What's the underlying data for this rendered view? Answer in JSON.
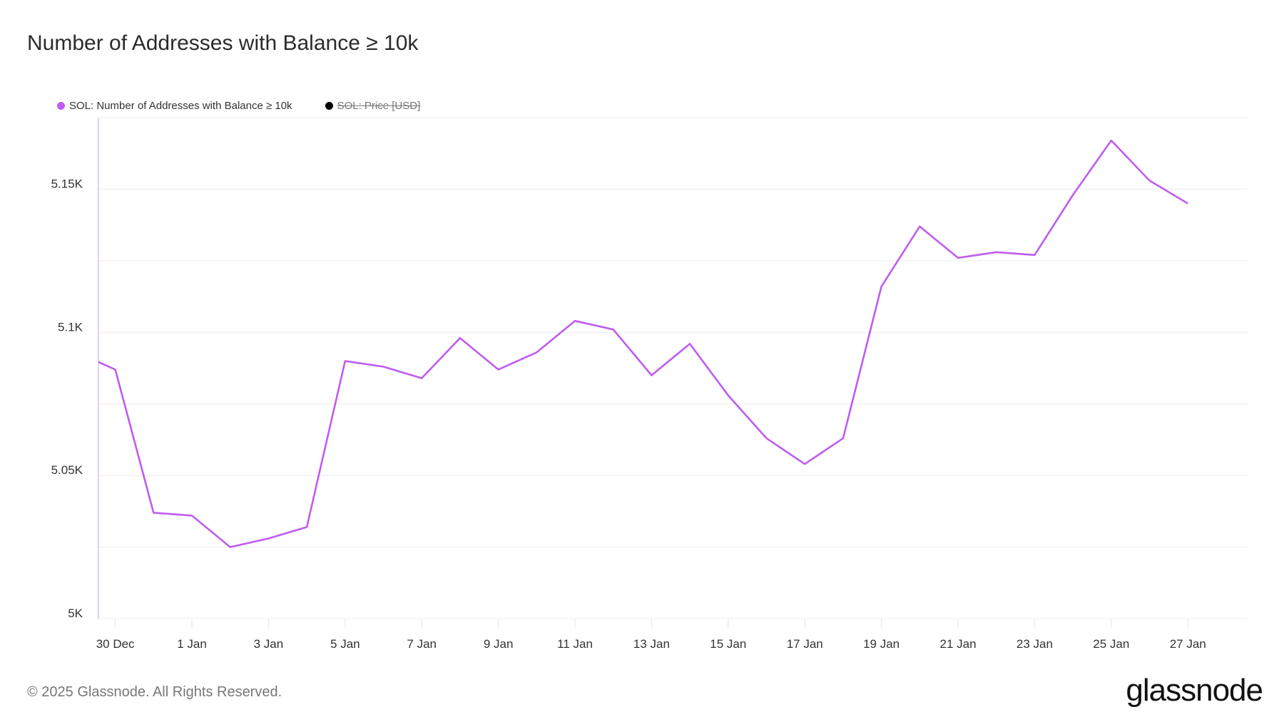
{
  "title": "Number of Addresses with Balance ≥ 10k",
  "legend": [
    {
      "label": "SOL: Number of Addresses with Balance ≥ 10k",
      "color": "#c05cf0",
      "active": true
    },
    {
      "label": "SOL: Price [USD]",
      "color": "#000000",
      "active": false
    }
  ],
  "footer": "© 2025 Glassnode. All Rights Reserved.",
  "logo": "glassnode",
  "chart_data": {
    "type": "line",
    "title": "Number of Addresses with Balance ≥ 10k",
    "xlabel": "",
    "ylabel": "",
    "ylim": [
      5000,
      5175
    ],
    "yticks": [
      {
        "v": 5000,
        "label": "5K"
      },
      {
        "v": 5050,
        "label": "5.05K"
      },
      {
        "v": 5100,
        "label": "5.1K"
      },
      {
        "v": 5150,
        "label": "5.15K"
      }
    ],
    "xticks": [
      "30 Dec",
      "1 Jan",
      "3 Jan",
      "5 Jan",
      "7 Jan",
      "9 Jan",
      "11 Jan",
      "13 Jan",
      "15 Jan",
      "17 Jan",
      "19 Jan",
      "21 Jan",
      "23 Jan",
      "25 Jan",
      "27 Jan"
    ],
    "grid": true,
    "legend_position": "top-left",
    "series": [
      {
        "name": "SOL: Number of Addresses with Balance ≥ 10k",
        "color": "#c05cf0",
        "x": [
          "2024-12-29",
          "2024-12-30",
          "2024-12-31",
          "2025-01-01",
          "2025-01-02",
          "2025-01-03",
          "2025-01-04",
          "2025-01-05",
          "2025-01-06",
          "2025-01-07",
          "2025-01-08",
          "2025-01-09",
          "2025-01-10",
          "2025-01-11",
          "2025-01-12",
          "2025-01-13",
          "2025-01-14",
          "2025-01-15",
          "2025-01-16",
          "2025-01-17",
          "2025-01-18",
          "2025-01-19",
          "2025-01-20",
          "2025-01-21",
          "2025-01-22",
          "2025-01-23",
          "2025-01-24",
          "2025-01-25",
          "2025-01-26",
          "2025-01-27"
        ],
        "values": [
          5093,
          5087,
          5037,
          5036,
          5025,
          5028,
          5032,
          5090,
          5088,
          5084,
          5098,
          5087,
          5093,
          5104,
          5101,
          5085,
          5096,
          5078,
          5063,
          5054,
          5063,
          5116,
          5137,
          5126,
          5128,
          5127,
          5148,
          5167,
          5153,
          5145
        ]
      }
    ]
  }
}
